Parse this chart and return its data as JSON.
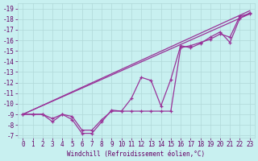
{
  "xlabel": "Windchill (Refroidissement éolien,°C)",
  "background_color": "#c8f0f0",
  "grid_color": "#b0d8d8",
  "line_color": "#993399",
  "xlim": [
    -0.5,
    23.5
  ],
  "ylim": [
    -19.5,
    -6.8
  ],
  "xticks": [
    0,
    1,
    2,
    3,
    4,
    5,
    6,
    7,
    8,
    9,
    10,
    11,
    12,
    13,
    14,
    15,
    16,
    17,
    18,
    19,
    20,
    21,
    22,
    23
  ],
  "yticks": [
    -7,
    -8,
    -9,
    -10,
    -11,
    -12,
    -13,
    -14,
    -15,
    -16,
    -17,
    -18,
    -19
  ],
  "series1_x": [
    0,
    1,
    2,
    3,
    4,
    5,
    6,
    7,
    8,
    9,
    10,
    11,
    12,
    13,
    14,
    15,
    16,
    17,
    18,
    19,
    20,
    21,
    22,
    23
  ],
  "series1_y": [
    -9,
    -9,
    -9,
    -8.3,
    -9,
    -8.5,
    -7.2,
    -7.2,
    -8.3,
    -9.4,
    -9.3,
    -10.5,
    -12.5,
    -12.2,
    -9.8,
    -12.3,
    -15.5,
    -15.3,
    -15.7,
    -16.3,
    -16.8,
    -15.8,
    -18.1,
    -18.6
  ],
  "series2_x": [
    0,
    1,
    2,
    3,
    4,
    5,
    6,
    7,
    8,
    9,
    10,
    11,
    12,
    13,
    14,
    15,
    16,
    17,
    18,
    19,
    20,
    21,
    22,
    23
  ],
  "series2_y": [
    -9,
    -9,
    -9,
    -8.6,
    -9,
    -8.8,
    -7.5,
    -7.5,
    -8.5,
    -9.3,
    -9.3,
    -9.3,
    -9.3,
    -9.3,
    -9.3,
    -9.3,
    -15.3,
    -15.5,
    -15.8,
    -16.1,
    -16.6,
    -16.3,
    -18.3,
    -18.5
  ],
  "series3_x": [
    0,
    23
  ],
  "series3_y": [
    -9.0,
    -18.5
  ],
  "series4_x": [
    0,
    23
  ],
  "series4_y": [
    -9.0,
    -18.8
  ]
}
